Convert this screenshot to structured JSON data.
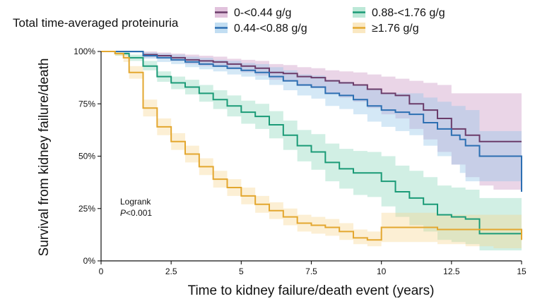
{
  "chart_data": {
    "type": "line",
    "chart_kind": "kaplan-meier survival curve with confidence bands",
    "title": "",
    "legend_title": "Total time-averaged proteinuria",
    "xlabel": "Time to kidney failure/death event (years)",
    "ylabel": "Survival from kidney failure/death",
    "xlim": [
      0,
      15
    ],
    "ylim": [
      0,
      1
    ],
    "x_ticks": [
      0,
      2.5,
      5,
      7.5,
      10,
      12.5,
      15
    ],
    "x_tick_labels": [
      "0",
      "2.5",
      "5",
      "7.5",
      "10",
      "12.5",
      "15"
    ],
    "y_ticks": [
      0,
      0.25,
      0.5,
      0.75,
      1
    ],
    "y_tick_labels": [
      "0%",
      "25%",
      "50%",
      "75%",
      "100%"
    ],
    "annotation": {
      "line1": "Logrank",
      "p_italic": "P",
      "p_value": "<0.001"
    },
    "series": [
      {
        "name": "0-<0.44 g/g",
        "line_color": "#6b3c6a",
        "band_color": "#c990bf",
        "x": [
          0,
          0.8,
          1.5,
          2.0,
          2.5,
          3.0,
          3.5,
          4.0,
          4.5,
          5.0,
          5.5,
          6.0,
          6.5,
          7.0,
          7.5,
          8.0,
          8.5,
          9.0,
          9.5,
          10.0,
          10.5,
          11.0,
          11.5,
          12.0,
          12.5,
          13.0,
          13.5,
          14.0,
          15.0
        ],
        "values": [
          1.0,
          1.0,
          0.985,
          0.98,
          0.97,
          0.96,
          0.955,
          0.95,
          0.94,
          0.93,
          0.92,
          0.9,
          0.895,
          0.88,
          0.875,
          0.86,
          0.85,
          0.84,
          0.82,
          0.8,
          0.79,
          0.75,
          0.72,
          0.68,
          0.63,
          0.6,
          0.57,
          0.57,
          0.57
        ],
        "lower": [
          1.0,
          0.995,
          0.97,
          0.965,
          0.955,
          0.94,
          0.93,
          0.925,
          0.915,
          0.9,
          0.885,
          0.865,
          0.855,
          0.835,
          0.825,
          0.8,
          0.78,
          0.76,
          0.73,
          0.7,
          0.68,
          0.63,
          0.58,
          0.52,
          0.46,
          0.4,
          0.36,
          0.34,
          0.34
        ],
        "upper": [
          1.0,
          1.0,
          1.0,
          0.995,
          0.99,
          0.985,
          0.98,
          0.975,
          0.965,
          0.96,
          0.955,
          0.94,
          0.935,
          0.925,
          0.92,
          0.91,
          0.905,
          0.9,
          0.89,
          0.88,
          0.87,
          0.86,
          0.85,
          0.84,
          0.8,
          0.8,
          0.8,
          0.8,
          0.8
        ]
      },
      {
        "name": "0.44-<0.88 g/g",
        "line_color": "#2c6fb2",
        "band_color": "#8fc3e8",
        "x": [
          0,
          0.8,
          1.5,
          2.0,
          2.5,
          3.0,
          3.5,
          4.0,
          4.5,
          5.0,
          5.5,
          6.0,
          6.5,
          7.0,
          7.5,
          8.0,
          8.5,
          9.0,
          9.5,
          10.0,
          10.5,
          11.0,
          11.5,
          12.0,
          12.5,
          12.8,
          13.0,
          13.5,
          14.0,
          14.7,
          14.95,
          15.0
        ],
        "values": [
          1.0,
          1.0,
          0.98,
          0.97,
          0.96,
          0.95,
          0.94,
          0.93,
          0.92,
          0.91,
          0.9,
          0.88,
          0.86,
          0.84,
          0.83,
          0.8,
          0.79,
          0.77,
          0.74,
          0.72,
          0.71,
          0.7,
          0.66,
          0.63,
          0.6,
          0.58,
          0.55,
          0.5,
          0.5,
          0.5,
          0.5,
          0.33
        ],
        "lower": [
          1.0,
          0.995,
          0.965,
          0.95,
          0.94,
          0.925,
          0.915,
          0.905,
          0.89,
          0.88,
          0.865,
          0.84,
          0.815,
          0.79,
          0.775,
          0.74,
          0.725,
          0.7,
          0.665,
          0.64,
          0.62,
          0.6,
          0.55,
          0.5,
          0.46,
          0.42,
          0.38,
          0.38,
          0.38,
          0.38,
          0.38,
          0.38
        ],
        "upper": [
          1.0,
          1.0,
          0.995,
          0.99,
          0.985,
          0.975,
          0.97,
          0.96,
          0.955,
          0.945,
          0.94,
          0.925,
          0.91,
          0.89,
          0.885,
          0.865,
          0.855,
          0.84,
          0.82,
          0.8,
          0.8,
          0.8,
          0.78,
          0.76,
          0.74,
          0.74,
          0.72,
          0.62,
          0.62,
          0.62,
          0.62,
          0.62
        ]
      },
      {
        "name": "0.88-<1.76 g/g",
        "line_color": "#1b9b77",
        "band_color": "#85d5b7",
        "x": [
          0,
          0.5,
          1.0,
          1.5,
          2.0,
          2.5,
          3.0,
          3.5,
          4.0,
          4.5,
          5.0,
          5.5,
          6.0,
          6.5,
          7.0,
          7.5,
          8.0,
          8.5,
          9.0,
          9.5,
          10.0,
          10.5,
          11.0,
          11.5,
          12.0,
          12.5,
          13.0,
          13.5,
          14.0,
          14.5,
          15.0
        ],
        "values": [
          1.0,
          0.99,
          0.97,
          0.93,
          0.88,
          0.85,
          0.83,
          0.8,
          0.77,
          0.74,
          0.71,
          0.69,
          0.65,
          0.6,
          0.55,
          0.52,
          0.47,
          0.44,
          0.42,
          0.42,
          0.38,
          0.33,
          0.3,
          0.27,
          0.22,
          0.21,
          0.2,
          0.13,
          0.13,
          0.13,
          0.13
        ],
        "lower": [
          1.0,
          0.98,
          0.955,
          0.91,
          0.855,
          0.82,
          0.795,
          0.76,
          0.725,
          0.69,
          0.655,
          0.63,
          0.585,
          0.53,
          0.475,
          0.435,
          0.38,
          0.345,
          0.315,
          0.305,
          0.26,
          0.21,
          0.17,
          0.14,
          0.1,
          0.09,
          0.08,
          0.05,
          0.05,
          0.05,
          0.05
        ],
        "upper": [
          1.0,
          1.0,
          0.985,
          0.955,
          0.905,
          0.88,
          0.865,
          0.84,
          0.815,
          0.79,
          0.765,
          0.75,
          0.715,
          0.67,
          0.625,
          0.605,
          0.56,
          0.535,
          0.525,
          0.52,
          0.5,
          0.455,
          0.43,
          0.4,
          0.36,
          0.35,
          0.34,
          0.3,
          0.3,
          0.3,
          0.3
        ]
      },
      {
        "name": "≥1.76 g/g",
        "line_color": "#e3a72f",
        "band_color": "#f6d68f",
        "x": [
          0,
          0.5,
          0.8,
          1.0,
          1.5,
          2.0,
          2.5,
          3.0,
          3.5,
          4.0,
          4.5,
          5.0,
          5.5,
          6.0,
          6.5,
          7.0,
          7.5,
          8.0,
          8.5,
          9.0,
          9.5,
          10.0,
          11.0,
          12.0,
          12.5,
          13.0,
          14.0,
          14.7,
          14.95,
          15.0
        ],
        "values": [
          1.0,
          0.99,
          0.97,
          0.9,
          0.73,
          0.64,
          0.57,
          0.51,
          0.45,
          0.39,
          0.35,
          0.31,
          0.27,
          0.24,
          0.21,
          0.18,
          0.17,
          0.16,
          0.14,
          0.11,
          0.1,
          0.16,
          0.16,
          0.15,
          0.15,
          0.15,
          0.15,
          0.15,
          0.15,
          0.1
        ],
        "lower": [
          1.0,
          0.98,
          0.95,
          0.87,
          0.69,
          0.6,
          0.53,
          0.47,
          0.41,
          0.35,
          0.31,
          0.27,
          0.23,
          0.2,
          0.17,
          0.14,
          0.13,
          0.12,
          0.1,
          0.08,
          0.07,
          0.09,
          0.09,
          0.08,
          0.08,
          0.07,
          0.06,
          0.06,
          0.06,
          0.04
        ],
        "upper": [
          1.0,
          1.0,
          0.985,
          0.93,
          0.77,
          0.68,
          0.61,
          0.55,
          0.49,
          0.43,
          0.39,
          0.35,
          0.31,
          0.28,
          0.25,
          0.22,
          0.21,
          0.2,
          0.18,
          0.15,
          0.14,
          0.23,
          0.23,
          0.22,
          0.22,
          0.22,
          0.22,
          0.22,
          0.22,
          0.2
        ]
      }
    ]
  }
}
